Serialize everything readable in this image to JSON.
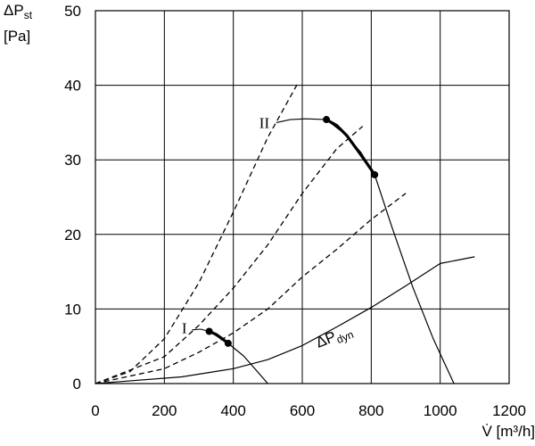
{
  "chart_data": {
    "type": "line",
    "xlabel": "V̇ [m³/h]",
    "ylabel_main": "ΔP",
    "ylabel_sub": "st",
    "ylabel_unit": "[Pa]",
    "xlim": [
      0,
      1200
    ],
    "ylim": [
      0,
      50
    ],
    "x_ticks": [
      0,
      200,
      400,
      600,
      800,
      1000,
      1200
    ],
    "y_ticks": [
      0,
      10,
      20,
      30,
      40,
      50
    ],
    "grid": true,
    "series": [
      {
        "style": "dashed",
        "points": [
          [
            0,
            0
          ],
          [
            100,
            1.6
          ],
          [
            200,
            6
          ],
          [
            300,
            13.5
          ],
          [
            400,
            23
          ],
          [
            500,
            33
          ],
          [
            590,
            40.5
          ]
        ]
      },
      {
        "style": "dashed",
        "points": [
          [
            0,
            0
          ],
          [
            200,
            3.6
          ],
          [
            300,
            7.8
          ],
          [
            400,
            12.8
          ],
          [
            500,
            18.6
          ],
          [
            600,
            25.5
          ],
          [
            700,
            31.5
          ],
          [
            775,
            34.5
          ]
        ]
      },
      {
        "style": "dashed",
        "points": [
          [
            0,
            0
          ],
          [
            200,
            2
          ],
          [
            300,
            4.2
          ],
          [
            400,
            6.8
          ],
          [
            500,
            10
          ],
          [
            600,
            14.3
          ],
          [
            700,
            18
          ],
          [
            800,
            22
          ],
          [
            900,
            25.5
          ]
        ]
      },
      {
        "style": "solid",
        "points": [
          [
            0,
            0
          ],
          [
            250,
            0.9
          ],
          [
            400,
            2
          ],
          [
            500,
            3.2
          ],
          [
            600,
            5.1
          ],
          [
            700,
            7.6
          ],
          [
            800,
            10.2
          ],
          [
            900,
            13.1
          ],
          [
            1000,
            16.1
          ],
          [
            1100,
            17
          ]
        ]
      },
      {
        "style": "solid",
        "points": [
          [
            330,
            7
          ],
          [
            385,
            5.4
          ],
          [
            430,
            3.7
          ],
          [
            470,
            1.6
          ],
          [
            500,
            0
          ]
        ]
      },
      {
        "style": "solid",
        "points": [
          [
            670,
            35.4
          ],
          [
            720,
            33.6
          ],
          [
            770,
            31
          ],
          [
            810,
            28
          ],
          [
            860,
            21
          ],
          [
            920,
            13
          ],
          [
            980,
            6
          ],
          [
            1040,
            0
          ]
        ]
      },
      {
        "style": "thick",
        "points": [
          [
            330,
            7
          ],
          [
            350,
            6.6
          ],
          [
            368,
            6
          ],
          [
            385,
            5.4
          ]
        ]
      },
      {
        "style": "thick",
        "points": [
          [
            670,
            35.4
          ],
          [
            700,
            34.6
          ],
          [
            730,
            33.2
          ],
          [
            760,
            31.3
          ],
          [
            785,
            29.7
          ],
          [
            810,
            28
          ]
        ]
      },
      {
        "style": "leader",
        "points": [
          [
            525,
            35
          ],
          [
            565,
            35.4
          ],
          [
            610,
            35.5
          ],
          [
            670,
            35.4
          ]
        ]
      },
      {
        "style": "leader",
        "points": [
          [
            280,
            7.2
          ],
          [
            305,
            7.3
          ],
          [
            330,
            7
          ]
        ]
      }
    ],
    "markers": [
      [
        330,
        7
      ],
      [
        385,
        5.4
      ],
      [
        670,
        35.4
      ],
      [
        810,
        28
      ]
    ],
    "annotations": [
      {
        "text": "I",
        "x": 258,
        "y": 7.5
      },
      {
        "text": "II",
        "x": 490,
        "y": 35
      }
    ],
    "dyn_label": {
      "main": "ΔP",
      "sub": "dyn",
      "x": 640,
      "y": 5
    }
  }
}
